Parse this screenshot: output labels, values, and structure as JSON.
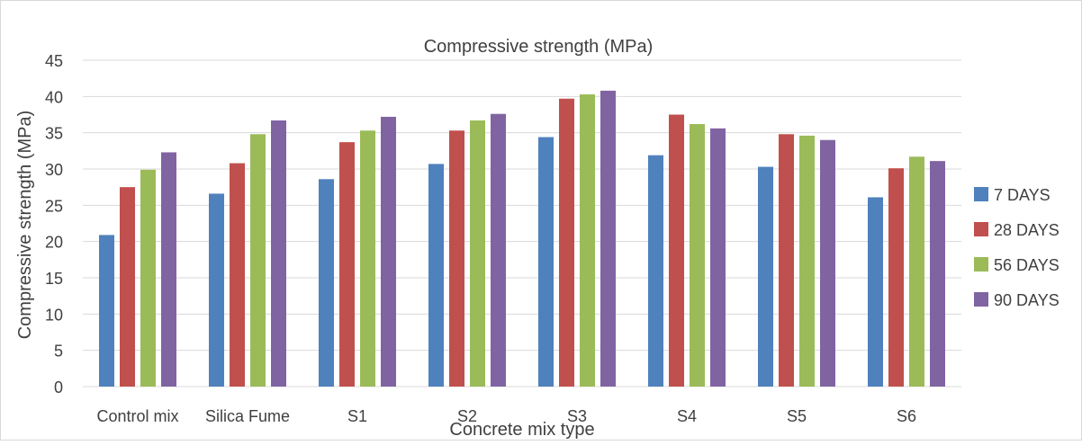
{
  "chart_data": {
    "type": "bar",
    "title": "Compressive strength (MPa)",
    "xlabel": "Concrete mix type",
    "ylabel": "Compressive strength (MPa)",
    "ylim": [
      0,
      45
    ],
    "yticks": [
      0,
      5,
      10,
      15,
      20,
      25,
      30,
      35,
      40,
      45
    ],
    "grid": true,
    "legend_position": "right",
    "categories": [
      "Control mix",
      "Silica Fume",
      "S1",
      "S2",
      "S3",
      "S4",
      "S5",
      "S6"
    ],
    "series": [
      {
        "name": "7 DAYS",
        "color": "#4f81bd",
        "values": [
          20.9,
          26.6,
          28.6,
          30.7,
          34.4,
          31.9,
          30.3,
          26.1
        ]
      },
      {
        "name": "28 DAYS",
        "color": "#c0504d",
        "values": [
          27.5,
          30.8,
          33.7,
          35.3,
          39.7,
          37.5,
          34.8,
          30.1
        ]
      },
      {
        "name": "56 DAYS",
        "color": "#9bbb59",
        "values": [
          29.9,
          34.8,
          35.3,
          36.7,
          40.3,
          36.2,
          34.6,
          31.7
        ]
      },
      {
        "name": "90 DAYS",
        "color": "#8064a2",
        "values": [
          32.3,
          36.7,
          37.2,
          37.6,
          40.8,
          35.6,
          34.0,
          31.1
        ]
      }
    ]
  }
}
